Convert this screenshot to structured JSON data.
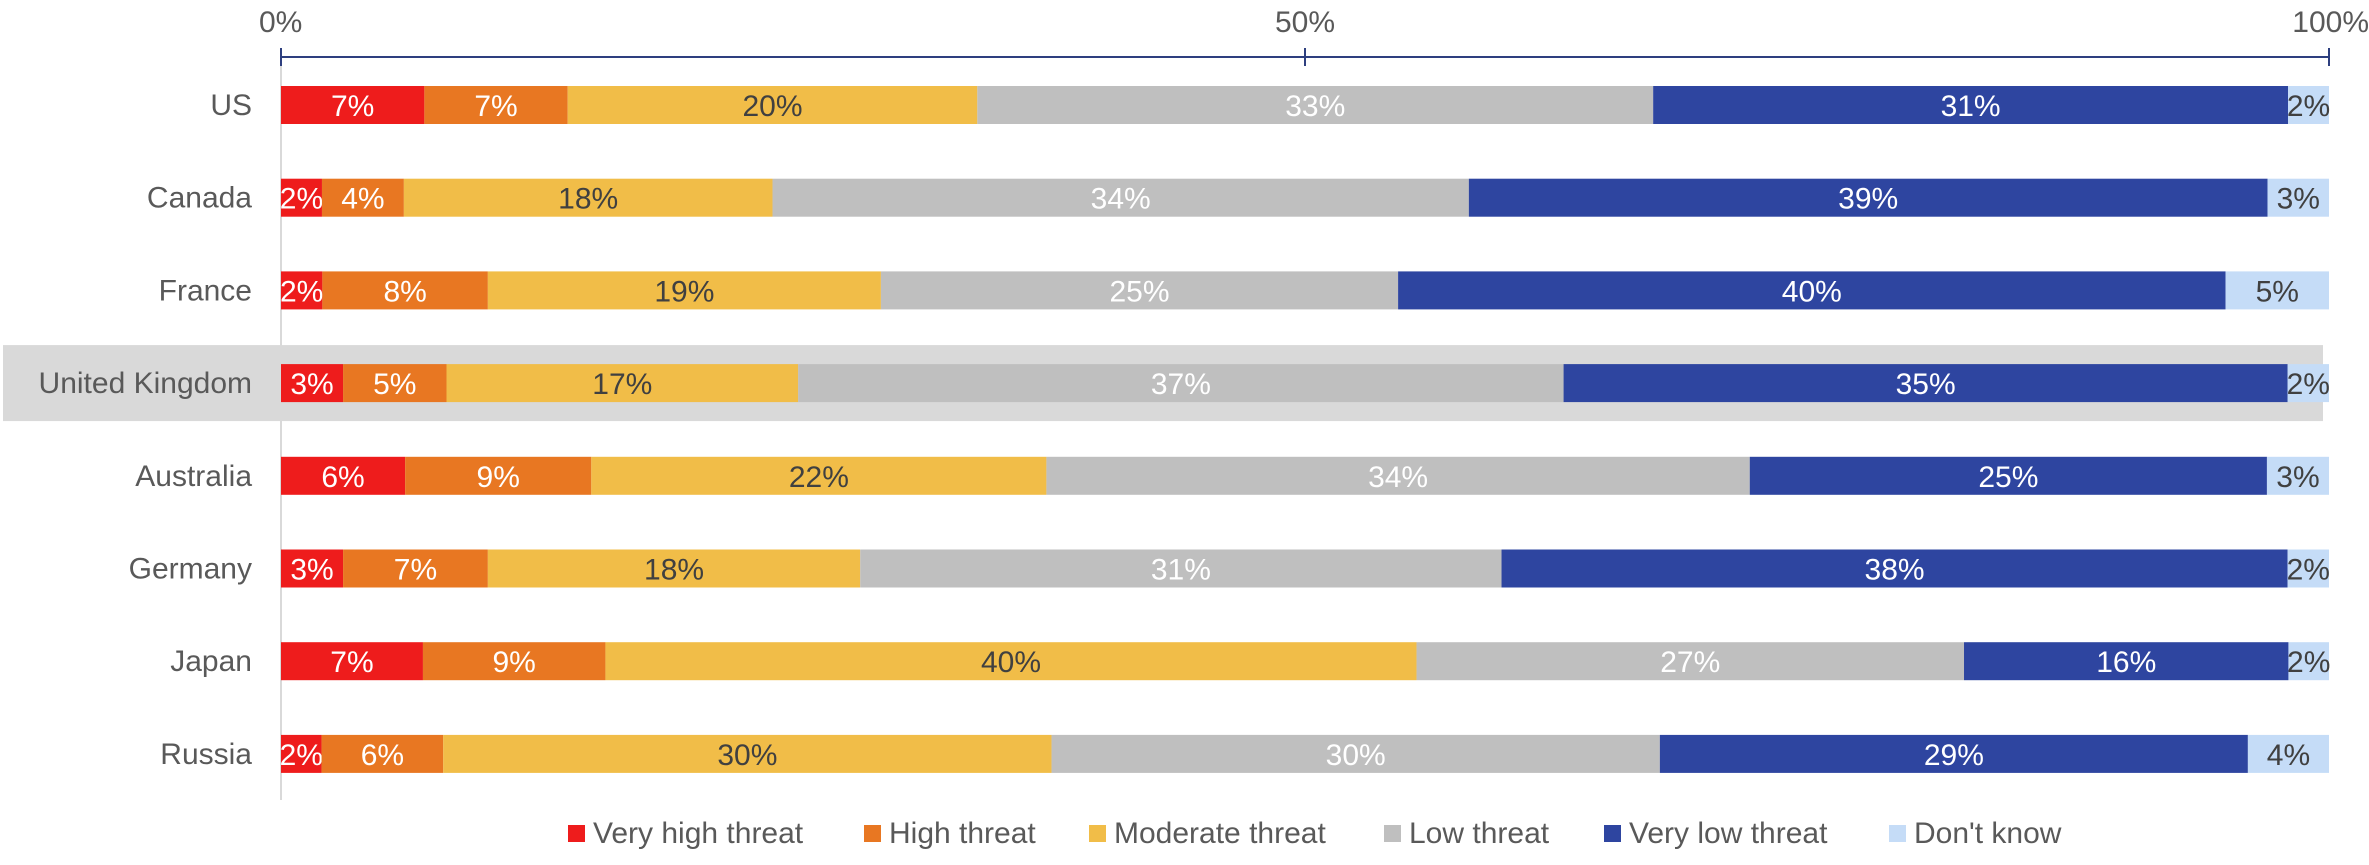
{
  "chart_data": {
    "type": "bar",
    "orientation": "horizontal",
    "stacked": "percent",
    "xlim": [
      0,
      100
    ],
    "x_ticks": [
      "0%",
      "50%",
      "100%"
    ],
    "x_axis_position": "top",
    "legend_position": "bottom",
    "grid": false,
    "highlighted_category": "United Kingdom",
    "categories": [
      "US",
      "Canada",
      "France",
      "United Kingdom",
      "Australia",
      "Germany",
      "Japan",
      "Russia"
    ],
    "series": [
      {
        "name": "Very high threat",
        "color": "#ee1c1c",
        "label_color": "#ffffff",
        "values": [
          7,
          2,
          2,
          3,
          6,
          3,
          7,
          2
        ]
      },
      {
        "name": "High threat",
        "color": "#e87722",
        "label_color": "#ffffff",
        "values": [
          7,
          4,
          8,
          5,
          9,
          7,
          9,
          6
        ]
      },
      {
        "name": "Moderate threat",
        "color": "#f1bd48",
        "label_color": "#404040",
        "values": [
          20,
          18,
          19,
          17,
          22,
          18,
          40,
          30
        ]
      },
      {
        "name": "Low threat",
        "color": "#bfbfbf",
        "label_color": "#ffffff",
        "values": [
          33,
          34,
          25,
          37,
          34,
          31,
          27,
          30
        ]
      },
      {
        "name": "Very low threat",
        "color": "#2e45a0",
        "label_color": "#ffffff",
        "values": [
          31,
          39,
          40,
          35,
          25,
          38,
          16,
          29
        ]
      },
      {
        "name": "Don't know",
        "color": "#c5dcf7",
        "label_color": "#404040",
        "values": [
          2,
          3,
          5,
          2,
          3,
          2,
          2,
          4
        ]
      }
    ],
    "colors": {
      "axis": "#2e3f7f",
      "highlight_band": "#d9d9d9",
      "text": "#595959"
    }
  }
}
